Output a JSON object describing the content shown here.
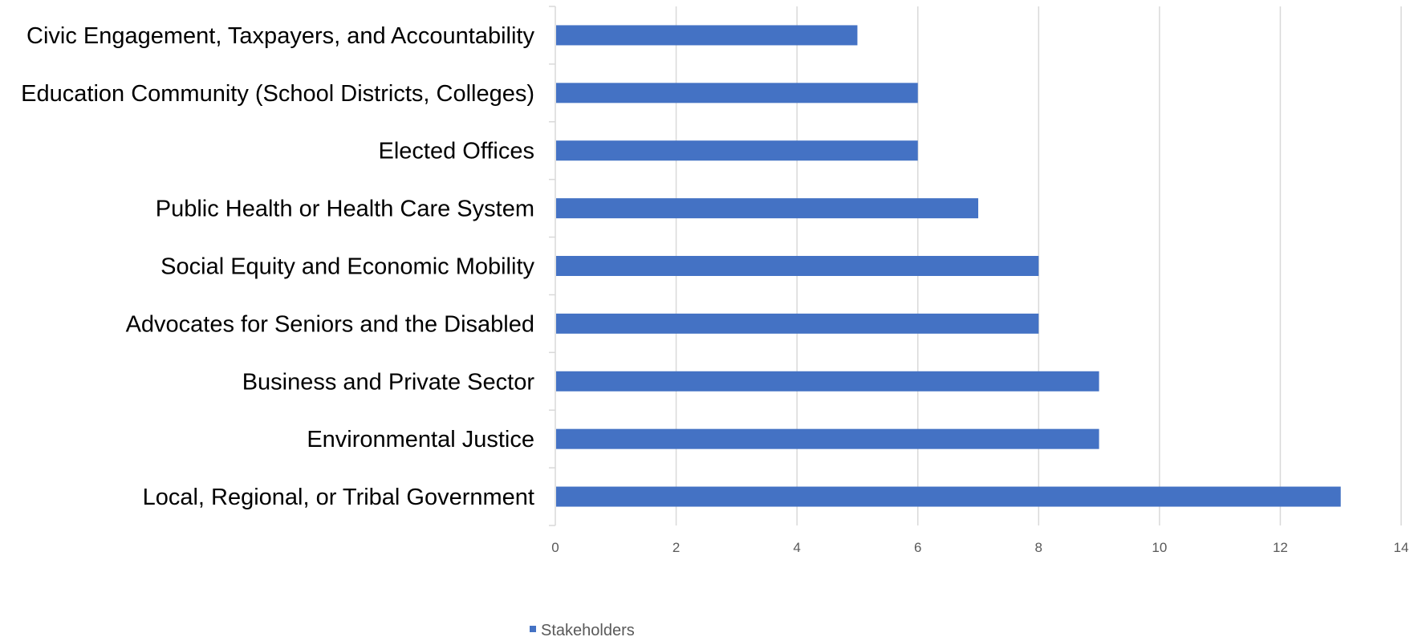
{
  "chart_data": {
    "type": "bar",
    "orientation": "horizontal",
    "categories": [
      "Civic Engagement, Taxpayers, and Accountability",
      "Education Community (School Districts, Colleges)",
      "Elected Offices",
      "Public Health or Health Care System",
      "Social Equity and Economic Mobility",
      "Advocates for Seniors and the Disabled",
      "Business and Private Sector",
      "Environmental Justice",
      "Local, Regional, or Tribal Government"
    ],
    "series": [
      {
        "name": "Stakeholders",
        "values": [
          5,
          6,
          6,
          7,
          8,
          8,
          9,
          9,
          13
        ],
        "color": "#4472C4"
      }
    ],
    "xlim": [
      0,
      14
    ],
    "xticks": [
      0,
      2,
      4,
      6,
      8,
      10,
      12,
      14
    ],
    "title": "",
    "xlabel": "",
    "ylabel": "",
    "grid": "vertical",
    "legend_position": "bottom"
  }
}
